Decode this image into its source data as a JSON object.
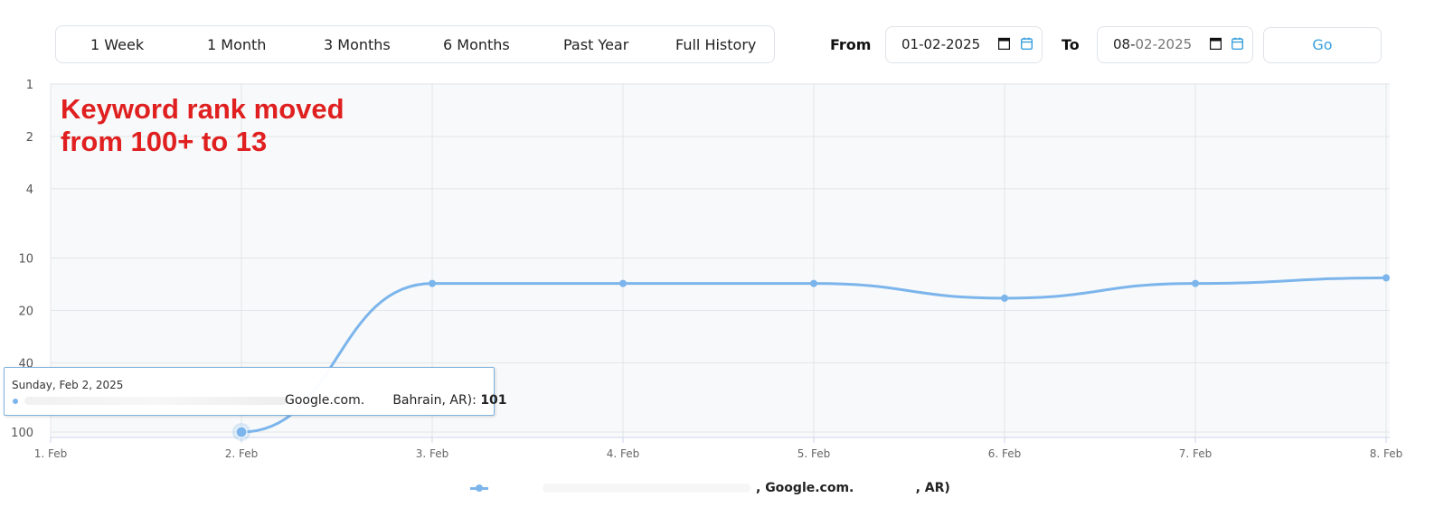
{
  "range_buttons": [
    "1 Week",
    "1 Month",
    "3 Months",
    "6 Months",
    "Past Year",
    "Full History"
  ],
  "date_filter": {
    "from_label": "From",
    "from_value": "01-02-2025",
    "to_label": "To",
    "to_value_day": "08-",
    "to_value_rest": "02-2025",
    "go_label": "Go",
    "accent_color": "#3aa0dc"
  },
  "annotation": {
    "line1": "Keyword rank moved",
    "line2": "from 100+ to 13",
    "color": "#e02020"
  },
  "tooltip": {
    "date": "Sunday, Feb 2, 2025",
    "series_text": "Google.com.       Bahrain, AR): ",
    "value": "101"
  },
  "legend": {
    "text": ", Google.com.              , AR)"
  },
  "chart_data": {
    "type": "line",
    "categories": [
      "1. Feb",
      "2. Feb",
      "3. Feb",
      "4. Feb",
      "5. Feb",
      "6. Feb",
      "7. Feb",
      "8. Feb"
    ],
    "y_axis": {
      "reversed": true,
      "scale": "log",
      "ticks": [
        1,
        2,
        4,
        10,
        20,
        40,
        100
      ]
    },
    "series": [
      {
        "values": [
          null,
          101,
          14,
          14,
          14,
          17,
          14,
          13
        ],
        "color": "#7cb5ec"
      }
    ],
    "grid": true
  }
}
